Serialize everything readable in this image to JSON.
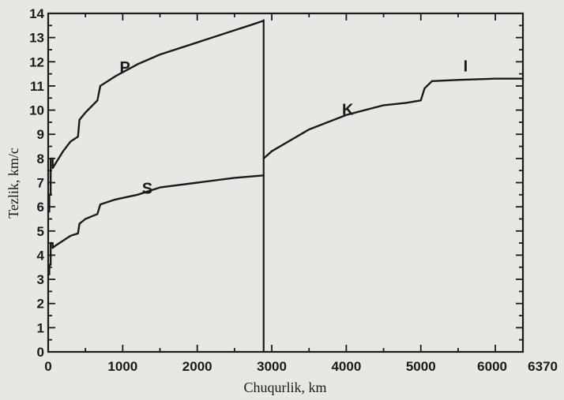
{
  "chart_data": {
    "type": "line",
    "xlabel": "Chuqurlik, km",
    "ylabel": "Tezlik, km/c",
    "xlim": [
      0,
      6370
    ],
    "ylim": [
      0,
      14
    ],
    "x_ticks": [
      "0",
      "1000",
      "2000",
      "3000",
      "4000",
      "5000",
      "6000",
      "6370"
    ],
    "y_ticks": [
      "0",
      "1",
      "2",
      "3",
      "4",
      "5",
      "6",
      "7",
      "8",
      "9",
      "10",
      "11",
      "12",
      "13",
      "14"
    ],
    "grid": false,
    "series": [
      {
        "name": "P",
        "x": [
          0,
          15,
          15,
          33,
          33,
          60,
          60,
          100,
          200,
          300,
          400,
          420,
          500,
          660,
          700,
          900,
          1200,
          1500,
          2000,
          2500,
          2700,
          2891
        ],
        "y": [
          5.8,
          5.8,
          6.5,
          6.5,
          8.0,
          8.0,
          7.6,
          7.8,
          8.3,
          8.7,
          8.9,
          9.6,
          9.9,
          10.4,
          11.0,
          11.4,
          11.9,
          12.3,
          12.8,
          13.3,
          13.5,
          13.7
        ]
      },
      {
        "name": "S",
        "x": [
          0,
          15,
          15,
          33,
          33,
          60,
          60,
          100,
          200,
          300,
          400,
          420,
          500,
          660,
          700,
          900,
          1200,
          1500,
          2000,
          2500,
          2891
        ],
        "y": [
          3.2,
          3.2,
          3.6,
          3.6,
          4.5,
          4.5,
          4.3,
          4.4,
          4.6,
          4.8,
          4.9,
          5.3,
          5.5,
          5.7,
          6.1,
          6.3,
          6.5,
          6.8,
          7.0,
          7.2,
          7.3
        ]
      },
      {
        "name": "K",
        "x": [
          2891,
          3000,
          3500,
          4000,
          4500,
          4800,
          5000,
          5050,
          5150
        ],
        "y": [
          8.0,
          8.3,
          9.2,
          9.8,
          10.2,
          10.3,
          10.4,
          10.9,
          11.2
        ]
      },
      {
        "name": "I",
        "x": [
          5150,
          5500,
          6000,
          6370
        ],
        "y": [
          11.2,
          11.25,
          11.3,
          11.3
        ]
      }
    ],
    "annotations": [
      {
        "text": "P",
        "x": 1030,
        "y": 11.55
      },
      {
        "text": "S",
        "x": 1330,
        "y": 6.55
      },
      {
        "text": "K",
        "x": 4020,
        "y": 9.8
      },
      {
        "text": "I",
        "x": 5600,
        "y": 11.6
      }
    ]
  }
}
